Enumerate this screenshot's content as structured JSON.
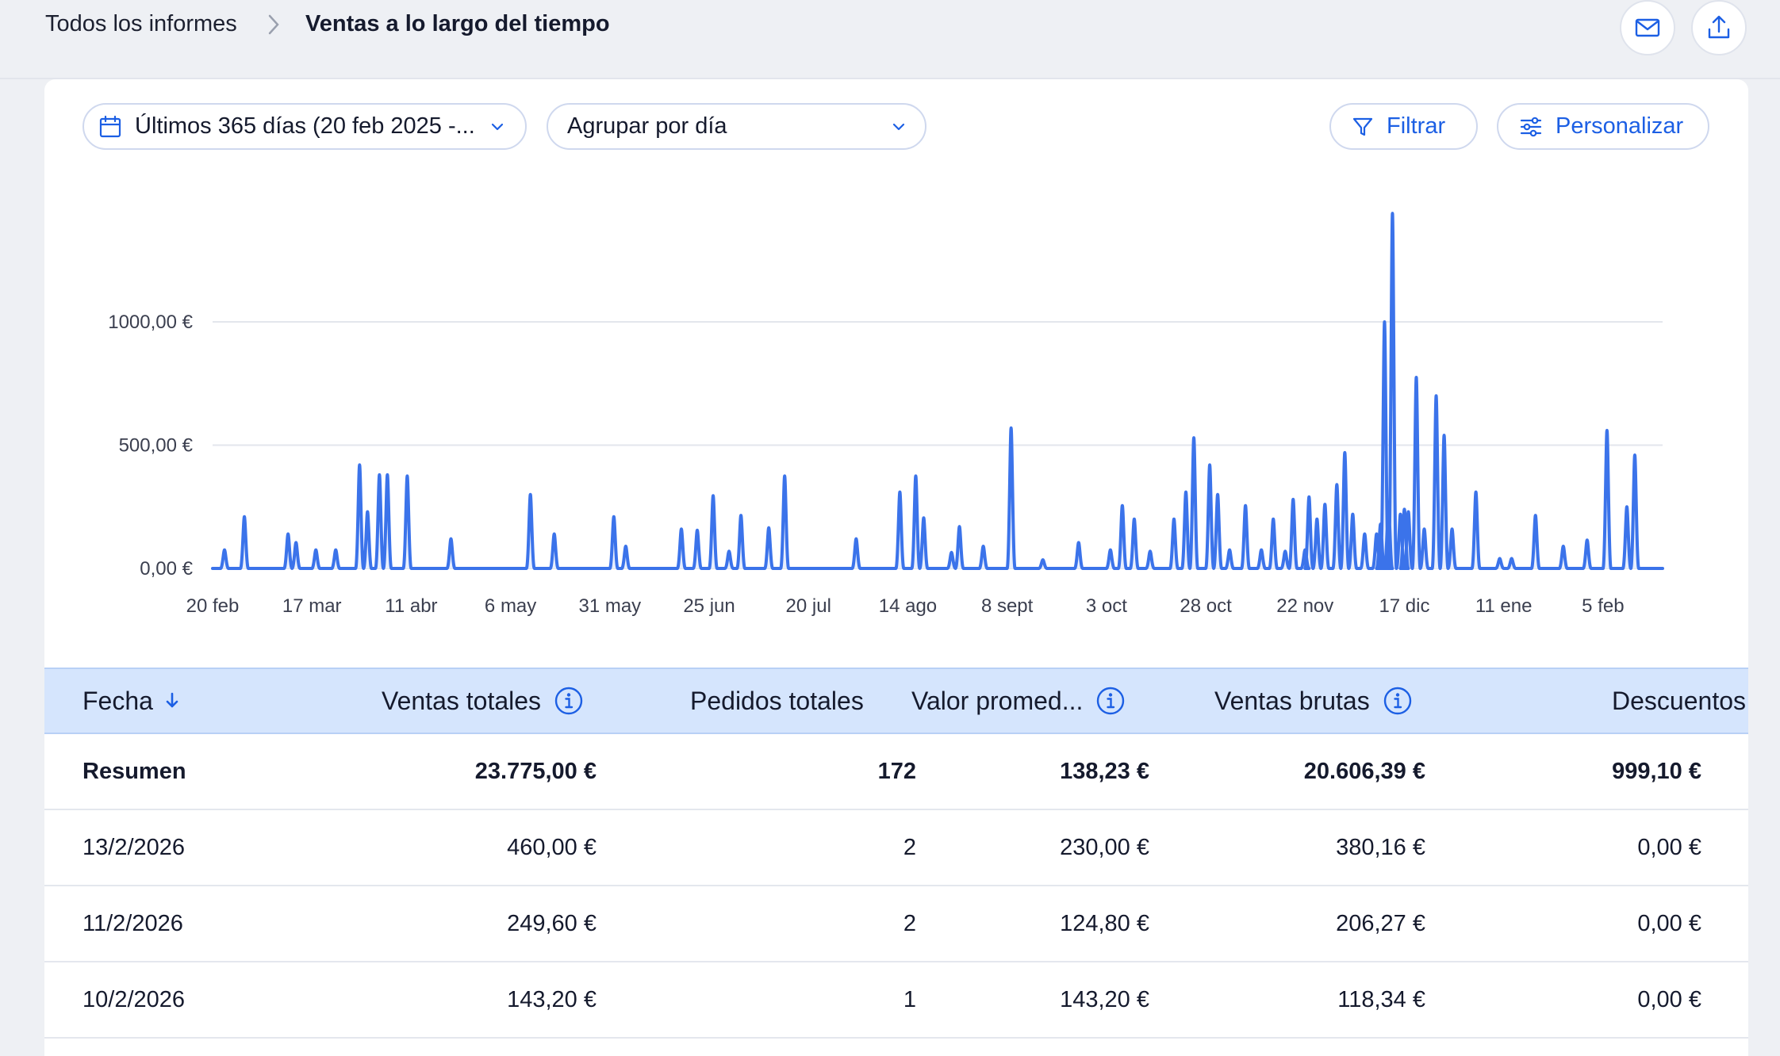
{
  "breadcrumb": {
    "root": "Todos los informes",
    "current": "Ventas a lo largo del tiempo"
  },
  "header_actions": {
    "email_icon": "envelope-icon",
    "export_icon": "upload-icon"
  },
  "toolbar": {
    "date_range": "Últimos 365 días (20 feb 2025 -...",
    "group_by": "Agrupar por día",
    "filter_label": "Filtrar",
    "customize_label": "Personalizar"
  },
  "colors": {
    "accent": "#1c5fe4",
    "line": "#3b73ea",
    "header_bg": "#d5e5fd"
  },
  "chart_data": {
    "type": "line",
    "title": "",
    "xlabel": "",
    "ylabel": "",
    "ylim": [
      0,
      1450
    ],
    "y_ticks": [
      {
        "value": 0,
        "label": "0,00 €"
      },
      {
        "value": 500,
        "label": "500,00 €"
      },
      {
        "value": 1000,
        "label": "1000,00 €"
      }
    ],
    "x_ticks": [
      {
        "day": 0,
        "label": "20 feb"
      },
      {
        "day": 25,
        "label": "17 mar"
      },
      {
        "day": 50,
        "label": "11 abr"
      },
      {
        "day": 75,
        "label": "6 may"
      },
      {
        "day": 100,
        "label": "31 may"
      },
      {
        "day": 125,
        "label": "25 jun"
      },
      {
        "day": 150,
        "label": "20 jul"
      },
      {
        "day": 175,
        "label": "14 ago"
      },
      {
        "day": 200,
        "label": "8 sept"
      },
      {
        "day": 225,
        "label": "3 oct"
      },
      {
        "day": 250,
        "label": "28 oct"
      },
      {
        "day": 275,
        "label": "22 nov"
      },
      {
        "day": 300,
        "label": "17 dic"
      },
      {
        "day": 325,
        "label": "11 ene"
      },
      {
        "day": 350,
        "label": "5 feb"
      }
    ],
    "x_max": 365,
    "grid": true,
    "legend": "none",
    "series": [
      {
        "points": [
          [
            3,
            75
          ],
          [
            8,
            210
          ],
          [
            19,
            140
          ],
          [
            21,
            105
          ],
          [
            26,
            75
          ],
          [
            31,
            75
          ],
          [
            37,
            420
          ],
          [
            39,
            230
          ],
          [
            42,
            380
          ],
          [
            44,
            380
          ],
          [
            49,
            375
          ],
          [
            60,
            120
          ],
          [
            80,
            300
          ],
          [
            86,
            140
          ],
          [
            101,
            210
          ],
          [
            104,
            90
          ],
          [
            118,
            160
          ],
          [
            122,
            155
          ],
          [
            126,
            295
          ],
          [
            130,
            70
          ],
          [
            133,
            215
          ],
          [
            140,
            165
          ],
          [
            144,
            375
          ],
          [
            162,
            120
          ],
          [
            173,
            310
          ],
          [
            177,
            375
          ],
          [
            179,
            205
          ],
          [
            186,
            65
          ],
          [
            188,
            170
          ],
          [
            194,
            90
          ],
          [
            201,
            570
          ],
          [
            209,
            35
          ],
          [
            218,
            105
          ],
          [
            226,
            75
          ],
          [
            229,
            255
          ],
          [
            232,
            200
          ],
          [
            236,
            70
          ],
          [
            242,
            200
          ],
          [
            245,
            310
          ],
          [
            247,
            530
          ],
          [
            251,
            420
          ],
          [
            253,
            300
          ],
          [
            256,
            75
          ],
          [
            260,
            255
          ],
          [
            264,
            75
          ],
          [
            267,
            200
          ],
          [
            270,
            70
          ],
          [
            272,
            280
          ],
          [
            275,
            75
          ],
          [
            276,
            290
          ],
          [
            278,
            200
          ],
          [
            280,
            260
          ],
          [
            283,
            340
          ],
          [
            285,
            470
          ],
          [
            287,
            220
          ],
          [
            290,
            140
          ],
          [
            293,
            140
          ],
          [
            294,
            180
          ],
          [
            295,
            1000
          ],
          [
            296,
            260
          ],
          [
            297,
            1440
          ],
          [
            299,
            220
          ],
          [
            300,
            240
          ],
          [
            301,
            230
          ],
          [
            303,
            775
          ],
          [
            305,
            160
          ],
          [
            308,
            700
          ],
          [
            310,
            540
          ],
          [
            312,
            160
          ],
          [
            318,
            310
          ],
          [
            324,
            40
          ],
          [
            327,
            40
          ],
          [
            333,
            215
          ],
          [
            340,
            90
          ],
          [
            346,
            115
          ],
          [
            351,
            560
          ],
          [
            356,
            250
          ],
          [
            358,
            460
          ]
        ]
      }
    ]
  },
  "table": {
    "columns": [
      {
        "label": "Fecha",
        "sort_icon": "arrow-down-icon"
      },
      {
        "label": "Ventas totales",
        "info": true
      },
      {
        "label": "Pedidos totales",
        "info": false
      },
      {
        "label": "Valor promed...",
        "info": true
      },
      {
        "label": "Ventas brutas",
        "info": true
      },
      {
        "label": "Descuentos",
        "info": false
      }
    ],
    "summary": [
      "Resumen",
      "23.775,00 €",
      "172",
      "138,23 €",
      "20.606,39 €",
      "999,10 €"
    ],
    "rows": [
      [
        "13/2/2026",
        "460,00 €",
        "2",
        "230,00 €",
        "380,16 €",
        "0,00 €"
      ],
      [
        "11/2/2026",
        "249,60 €",
        "2",
        "124,80 €",
        "206,27 €",
        "0,00 €"
      ],
      [
        "10/2/2026",
        "143,20 €",
        "1",
        "143,20 €",
        "118,34 €",
        "0,00 €"
      ]
    ]
  }
}
